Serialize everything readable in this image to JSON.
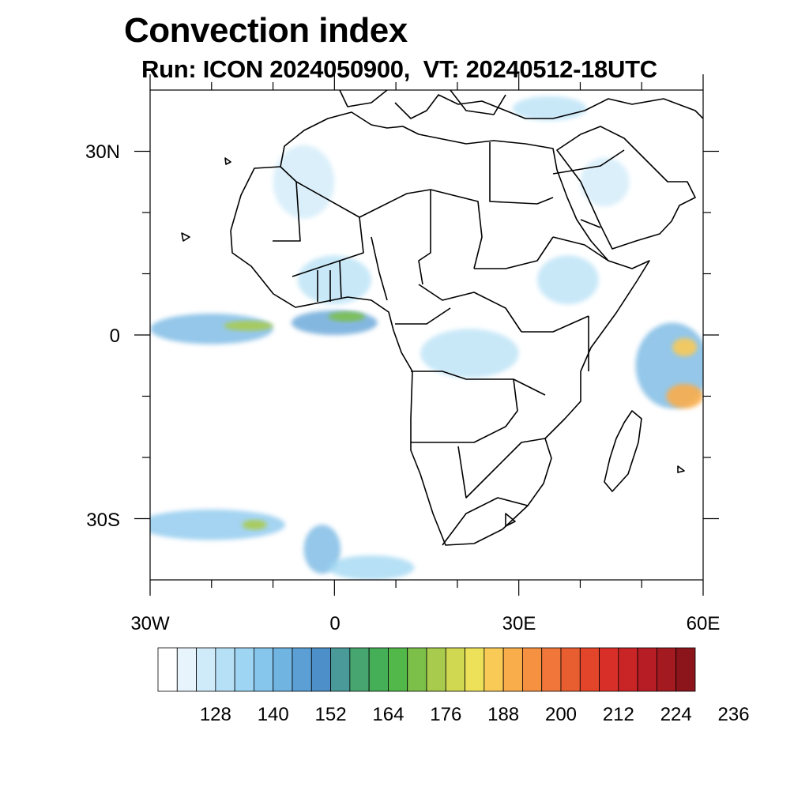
{
  "title": "Convection index",
  "subtitle": "Run: ICON 2024050900,  VT: 20240512-18UTC",
  "map": {
    "lon_range": [
      -30,
      60
    ],
    "lat_range": [
      -40,
      40
    ],
    "x_axis_labels": [
      {
        "lon": -30,
        "label": "30W"
      },
      {
        "lon": 0,
        "label": "0"
      },
      {
        "lon": 30,
        "label": "30E"
      },
      {
        "lon": 60,
        "label": "60E"
      }
    ],
    "y_axis_labels": [
      {
        "lat": 30,
        "label": "30N"
      },
      {
        "lat": 0,
        "label": "0"
      },
      {
        "lat": -30,
        "label": "30S"
      }
    ],
    "minor_tick_lons": [
      -20,
      -10,
      10,
      20,
      40,
      50
    ],
    "minor_tick_lats": [
      20,
      10,
      -10,
      -20
    ]
  },
  "colorbar": {
    "colors": [
      "#ffffff",
      "#e8f4fb",
      "#cfeaf8",
      "#b6e0f5",
      "#9dd5f2",
      "#86c6ec",
      "#70b4e2",
      "#5b9fd5",
      "#4d8fc8",
      "#4a9a9a",
      "#47a66f",
      "#45af58",
      "#52b849",
      "#7cc04a",
      "#a9cb4d",
      "#d0d751",
      "#ece159",
      "#f9ca56",
      "#f9ad4b",
      "#f69142",
      "#f0763a",
      "#e95e30",
      "#e2452a",
      "#d83028",
      "#c92527",
      "#b71d24",
      "#a31a21",
      "#8c151c"
    ],
    "labels": [
      "128",
      "140",
      "152",
      "164",
      "176",
      "188",
      "200",
      "212",
      "224",
      "236"
    ]
  },
  "convection_areas": [
    {
      "name": "itcz-atlantic",
      "lon": -20,
      "lat": 1,
      "rx": 10,
      "ry": 2.5,
      "level": 6
    },
    {
      "name": "itcz-atlantic-core",
      "lon": -14,
      "lat": 1.5,
      "rx": 4,
      "ry": 0.8,
      "level": 14
    },
    {
      "name": "itcz-gulf-guinea",
      "lon": 0,
      "lat": 2,
      "rx": 7,
      "ry": 2,
      "level": 7
    },
    {
      "name": "itcz-gulf-core",
      "lon": 2,
      "lat": 3,
      "rx": 3,
      "ry": 0.8,
      "level": 13
    },
    {
      "name": "west-africa",
      "lon": 0,
      "lat": 9,
      "rx": 6,
      "ry": 4,
      "level": 3
    },
    {
      "name": "sahara-west",
      "lon": -5,
      "lat": 25,
      "rx": 5,
      "ry": 6,
      "level": 2
    },
    {
      "name": "congo",
      "lon": 22,
      "lat": -3,
      "rx": 8,
      "ry": 4,
      "level": 3
    },
    {
      "name": "ethiopia",
      "lon": 38,
      "lat": 9,
      "rx": 5,
      "ry": 4,
      "level": 3
    },
    {
      "name": "arabia",
      "lon": 44,
      "lat": 25,
      "rx": 4,
      "ry": 4,
      "level": 2
    },
    {
      "name": "mediterranean",
      "lon": 35,
      "lat": 37,
      "rx": 6,
      "ry": 2,
      "level": 3
    },
    {
      "name": "indian-ocean-cluster",
      "lon": 55,
      "lat": -5,
      "rx": 6,
      "ry": 7,
      "level": 6
    },
    {
      "name": "indian-ocean-core-1",
      "lon": 57,
      "lat": -10,
      "rx": 3,
      "ry": 2,
      "level": 18
    },
    {
      "name": "indian-ocean-core-2",
      "lon": 57,
      "lat": -2,
      "rx": 2,
      "ry": 1.5,
      "level": 17
    },
    {
      "name": "south-atlantic-band",
      "lon": -20,
      "lat": -31,
      "rx": 12,
      "ry": 2.5,
      "level": 5
    },
    {
      "name": "south-atlantic-core",
      "lon": -13,
      "lat": -31,
      "rx": 2,
      "ry": 0.8,
      "level": 14
    },
    {
      "name": "south-atlantic-streak",
      "lon": -2,
      "lat": -35,
      "rx": 3,
      "ry": 4,
      "level": 6
    },
    {
      "name": "south-atlantic-tail",
      "lon": 6,
      "lat": -38,
      "rx": 7,
      "ry": 2,
      "level": 4
    }
  ]
}
